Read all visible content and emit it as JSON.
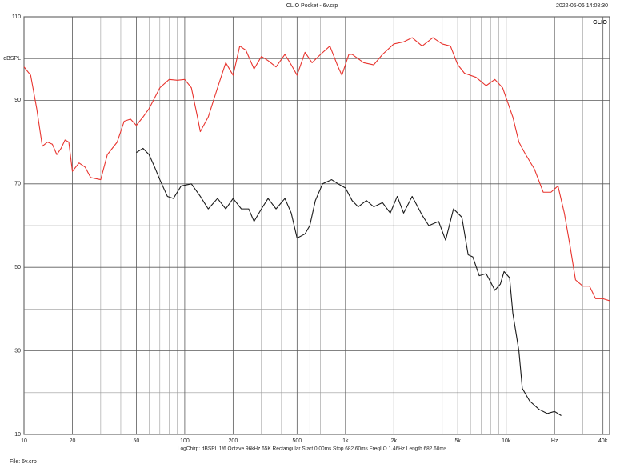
{
  "header": {
    "title": "CLIO Pocket - 6v.crp",
    "timestamp": "2022-05-06 14:08:30",
    "brand": "CLIO"
  },
  "footer": {
    "settings": "LogChirp:  dBSPL   1/6 Octave   96kHz   65K   Rectangular   Start 0.00ms   Stop 682.60ms   FreqLO 1.46Hz   Length 682.60ms",
    "file": "File: 6v.crp"
  },
  "chart_data": {
    "type": "line",
    "log_x": true,
    "grid": true,
    "xlim": [
      10,
      44000
    ],
    "ylim": [
      10,
      110
    ],
    "xticks": [
      10,
      20,
      50,
      100,
      200,
      500,
      {
        "value": 1000,
        "label": "1k"
      },
      {
        "value": 2000,
        "label": "2k"
      },
      {
        "value": 5000,
        "label": "5k"
      },
      {
        "value": 10000,
        "label": "10k"
      },
      {
        "value": 20000,
        "label": "Hz"
      },
      {
        "value": 40000,
        "label": "40k"
      }
    ],
    "xgrid_minor": [
      30,
      40,
      60,
      70,
      80,
      90,
      300,
      400,
      600,
      700,
      800,
      900,
      3000,
      4000,
      6000,
      7000,
      8000,
      9000,
      30000
    ],
    "yticks": [
      10,
      30,
      50,
      70,
      90,
      {
        "value": 100,
        "label": "dBSPL"
      },
      110
    ],
    "ygrid_minor": [
      20,
      40,
      60,
      80
    ],
    "series": [
      {
        "color": "#e8352f",
        "x": [
          10,
          11,
          12,
          13,
          14,
          15,
          16,
          17,
          18,
          19,
          20,
          22,
          24,
          26,
          30,
          33,
          38,
          42,
          46,
          50,
          55,
          60,
          70,
          80,
          90,
          100,
          110,
          120,
          125,
          140,
          160,
          180,
          200,
          220,
          240,
          270,
          300,
          330,
          370,
          420,
          460,
          500,
          560,
          620,
          700,
          800,
          900,
          950,
          1050,
          1100,
          1300,
          1500,
          1700,
          2000,
          2300,
          2600,
          3000,
          3500,
          4000,
          4500,
          5000,
          5500,
          6500,
          7500,
          8500,
          9500,
          11000,
          12000,
          13000,
          15000,
          17000,
          19000,
          21000,
          23000,
          25000,
          27000,
          30000,
          33000,
          36000,
          40000,
          44000
        ],
        "values": [
          98,
          96,
          88,
          79,
          80,
          79.5,
          77,
          78.5,
          80.5,
          80,
          73,
          75,
          74,
          71.5,
          71,
          77,
          80,
          85,
          85.5,
          84,
          86,
          88,
          93,
          95,
          94.8,
          95,
          93,
          86,
          82.5,
          86,
          93,
          99,
          96,
          103,
          102,
          97.5,
          100.5,
          99.5,
          98,
          101,
          98.5,
          96,
          101.5,
          99,
          101,
          103,
          98,
          96,
          101,
          101,
          99,
          98.5,
          101,
          103.5,
          104,
          105,
          103,
          105,
          103.5,
          103,
          98.5,
          96.5,
          95.5,
          93.5,
          95,
          93,
          86,
          80,
          77.5,
          73.5,
          68,
          68,
          69.5,
          63,
          55,
          47,
          45.5,
          45.5,
          42.5,
          42.5,
          42
        ]
      },
      {
        "color": "#1a1a1a",
        "x": [
          50,
          55,
          60,
          65,
          70,
          78,
          85,
          95,
          110,
          125,
          140,
          160,
          180,
          200,
          225,
          250,
          270,
          300,
          330,
          370,
          420,
          460,
          500,
          560,
          600,
          650,
          720,
          820,
          900,
          1000,
          1100,
          1200,
          1350,
          1500,
          1700,
          1900,
          2100,
          2300,
          2600,
          3000,
          3300,
          3800,
          4200,
          4700,
          5300,
          5800,
          6200,
          6800,
          7500,
          8000,
          8500,
          9200,
          9700,
          10500,
          11000,
          12000,
          12600,
          14000,
          16000,
          18000,
          20000,
          22000
        ],
        "values": [
          77.5,
          78.5,
          77,
          74,
          71,
          67,
          66.5,
          69.5,
          70,
          67,
          64,
          66.5,
          64,
          66.5,
          64,
          64,
          61,
          64,
          66.5,
          64,
          66.5,
          63,
          57,
          58,
          60,
          66,
          70,
          71,
          70,
          69,
          66,
          64.5,
          66,
          64.5,
          65.5,
          63,
          67,
          63,
          67,
          62.5,
          60,
          61,
          56.5,
          64,
          62,
          53,
          52.5,
          48,
          48.5,
          46.5,
          44.5,
          46,
          49,
          47.5,
          39,
          30,
          21,
          18,
          16,
          15,
          15.5,
          14.5
        ]
      }
    ]
  }
}
